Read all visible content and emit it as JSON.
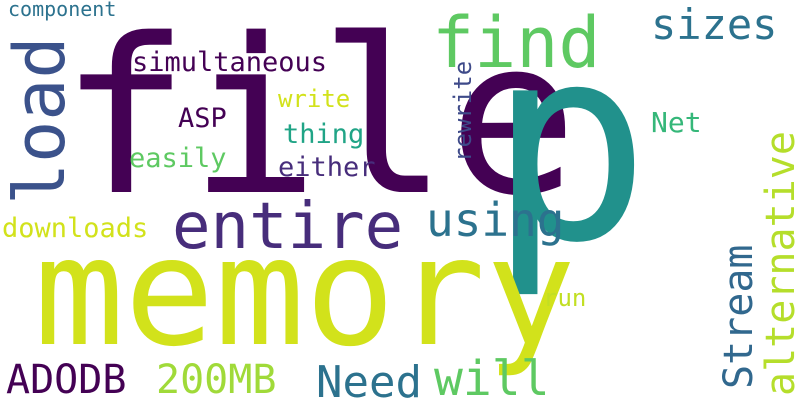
{
  "words": [
    {
      "key": "file",
      "text": "file",
      "color": "#440154"
    },
    {
      "key": "p",
      "text": "p",
      "color": "#21918c"
    },
    {
      "key": "memory",
      "text": "memory",
      "color": "#d2e21b"
    },
    {
      "key": "find",
      "text": "find",
      "color": "#5ec962"
    },
    {
      "key": "load",
      "text": "load",
      "color": "#3b528b"
    },
    {
      "key": "entire",
      "text": "entire",
      "color": "#472d7b"
    },
    {
      "key": "sizes",
      "text": "sizes",
      "color": "#2c728e"
    },
    {
      "key": "using",
      "text": "using",
      "color": "#2c728e"
    },
    {
      "key": "alternative",
      "text": "alternative",
      "color": "#b5de2b"
    },
    {
      "key": "stream",
      "text": "Stream",
      "color": "#31688e"
    },
    {
      "key": "simultaneous",
      "text": "simultaneous",
      "color": "#440154"
    },
    {
      "key": "component",
      "text": "component",
      "color": "#2c728e"
    },
    {
      "key": "write",
      "text": "write",
      "color": "#d2e21b"
    },
    {
      "key": "thing",
      "text": "thing",
      "color": "#20a486"
    },
    {
      "key": "asp",
      "text": "ASP",
      "color": "#440154"
    },
    {
      "key": "easily",
      "text": "easily",
      "color": "#5ec962"
    },
    {
      "key": "either",
      "text": "either",
      "color": "#472d7b"
    },
    {
      "key": "rewrite",
      "text": "rewrite",
      "color": "#3e4a89"
    },
    {
      "key": "net",
      "text": "Net",
      "color": "#35b779"
    },
    {
      "key": "downloads",
      "text": "downloads",
      "color": "#d2e21b"
    },
    {
      "key": "run",
      "text": "run",
      "color": "#c2df23"
    },
    {
      "key": "adodb",
      "text": "ADODB",
      "color": "#440154"
    },
    {
      "key": "size200mb",
      "text": "200MB",
      "color": "#a0da39"
    },
    {
      "key": "need",
      "text": "Need",
      "color": "#2c728e"
    },
    {
      "key": "will",
      "text": "will",
      "color": "#5ec962"
    }
  ]
}
